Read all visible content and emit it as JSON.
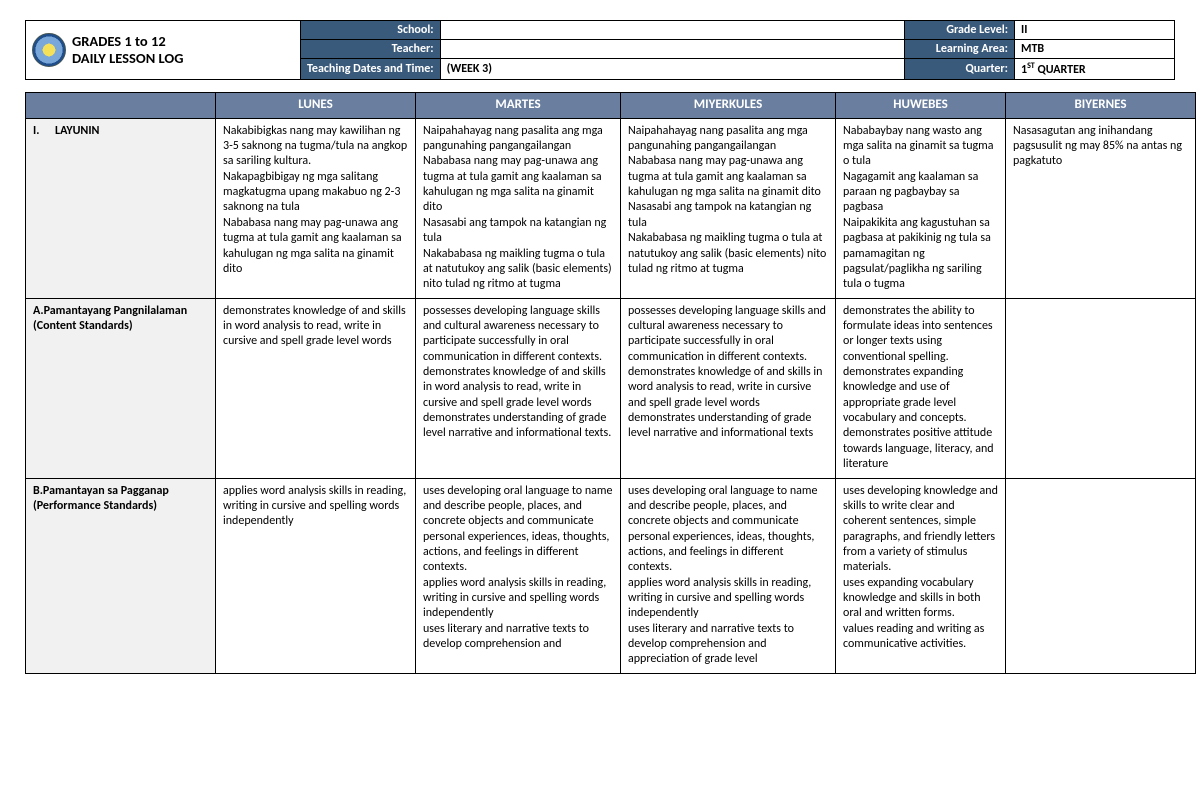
{
  "header": {
    "title_line1": "GRADES 1 to 12",
    "title_line2": "DAILY LESSON LOG",
    "labels": {
      "school": "School:",
      "teacher": "Teacher:",
      "dates": "Teaching Dates and Time:",
      "grade": "Grade Level:",
      "area": "Learning Area:",
      "quarter": "Quarter:"
    },
    "values": {
      "school": "",
      "teacher": "",
      "dates": "(WEEK 3)",
      "grade": "II",
      "area": "MTB",
      "quarter_pre": "1",
      "quarter_sup": "ST",
      "quarter_post": " QUARTER"
    }
  },
  "colors": {
    "header_bg": "#3a5a7c",
    "table_header_bg": "#6a7fa0",
    "rowhead_bg": "#f1f1f1"
  },
  "days": {
    "blank": "",
    "lunes": "LUNES",
    "martes": "MARTES",
    "miyerkules": "MIYERKULES",
    "huwebes": "HUWEBES",
    "biyernes": "BIYERNES"
  },
  "rows": {
    "layunin": {
      "label_roman": "I.",
      "label": "LAYUNIN",
      "lunes": "Nakabibigkas nang may kawilihan ng 3-5 saknong na tugma/tula na angkop sa sariling kultura.\nNakapagbibigay ng mga salitang magkatugma upang makabuo ng 2-3 saknong na tula\nNababasa nang may pag-unawa ang tugma at tula gamit ang kaalaman sa kahulugan ng mga salita na ginamit dito",
      "martes": "Naipahahayag nang pasalita ang mga pangunahing pangangailangan\nNababasa nang may pag-unawa ang tugma at tula gamit ang kaalaman sa kahulugan ng mga salita na ginamit dito\nNasasabi ang tampok na katangian ng tula\nNakababasa ng maikling tugma o tula at natutukoy ang salik (basic elements) nito tulad ng ritmo at tugma",
      "miyerkules": "Naipahahayag nang pasalita ang mga pangunahing pangangailangan\nNababasa nang may pag-unawa ang tugma at tula gamit ang kaalaman sa kahulugan ng mga salita na ginamit dito\nNasasabi ang tampok na katangian ng tula\nNakababasa ng maikling tugma o tula at natutukoy ang salik (basic elements) nito tulad ng ritmo at tugma",
      "huwebes": "Nababaybay nang wasto ang mga salita na ginamit sa tugma o tula\nNagagamit ang kaalaman sa paraan ng pagbaybay sa pagbasa\nNaipakikita ang kagustuhan sa pagbasa at pakikinig ng tula sa pamamagitan ng pagsulat/paglikha ng sariling tula o tugma",
      "biyernes": "Nasasagutan ang inihandang pagsusulit ng may 85% na antas ng pagkatuto"
    },
    "pangnilalaman": {
      "label_a": "A.Pamantayang Pangnilalaman",
      "label_paren": "(Content Standards)",
      "lunes": "demonstrates knowledge of and skills in word analysis to read, write in cursive and spell grade level words",
      "martes": "possesses developing language skills and cultural awareness necessary to participate successfully in oral communication in different contexts.\ndemonstrates knowledge of and skills in word analysis to read, write in cursive and spell grade level words\ndemonstrates understanding of grade level narrative and informational texts.",
      "miyerkules": "possesses developing language skills and cultural awareness necessary to participate successfully in oral communication in different contexts.\ndemonstrates knowledge of and skills in word analysis to read, write in cursive and spell grade level words\ndemonstrates understanding of grade level narrative and informational texts",
      "huwebes": "demonstrates the ability to formulate ideas into sentences or longer texts using conventional spelling.\ndemonstrates expanding knowledge and use of appropriate grade level vocabulary and concepts.\ndemonstrates positive attitude towards language, literacy, and literature",
      "biyernes": ""
    },
    "pagganap": {
      "label_b": "B.Pamantayan sa Pagganap",
      "label_paren": "(Performance Standards)",
      "lunes": "applies word analysis skills in reading, writing in cursive and spelling words independently",
      "martes": "uses developing oral language to name and describe people, places, and concrete objects and communicate personal experiences, ideas, thoughts, actions, and feelings in different contexts.\napplies word analysis skills in reading, writing in cursive and spelling words independently\nuses literary and narrative texts to develop comprehension and",
      "miyerkules": "uses developing oral language to name and describe people, places, and concrete objects and communicate personal experiences, ideas, thoughts, actions, and feelings in different contexts.\napplies word analysis skills in reading, writing in cursive and spelling words independently\nuses literary and narrative texts to develop comprehension and appreciation of grade level",
      "huwebes": "uses developing knowledge and skills to write clear and coherent sentences, simple paragraphs, and friendly letters from a variety of stimulus materials.\nuses expanding vocabulary knowledge and skills in both oral and written forms.\nvalues reading and writing as communicative activities.",
      "biyernes": ""
    }
  }
}
